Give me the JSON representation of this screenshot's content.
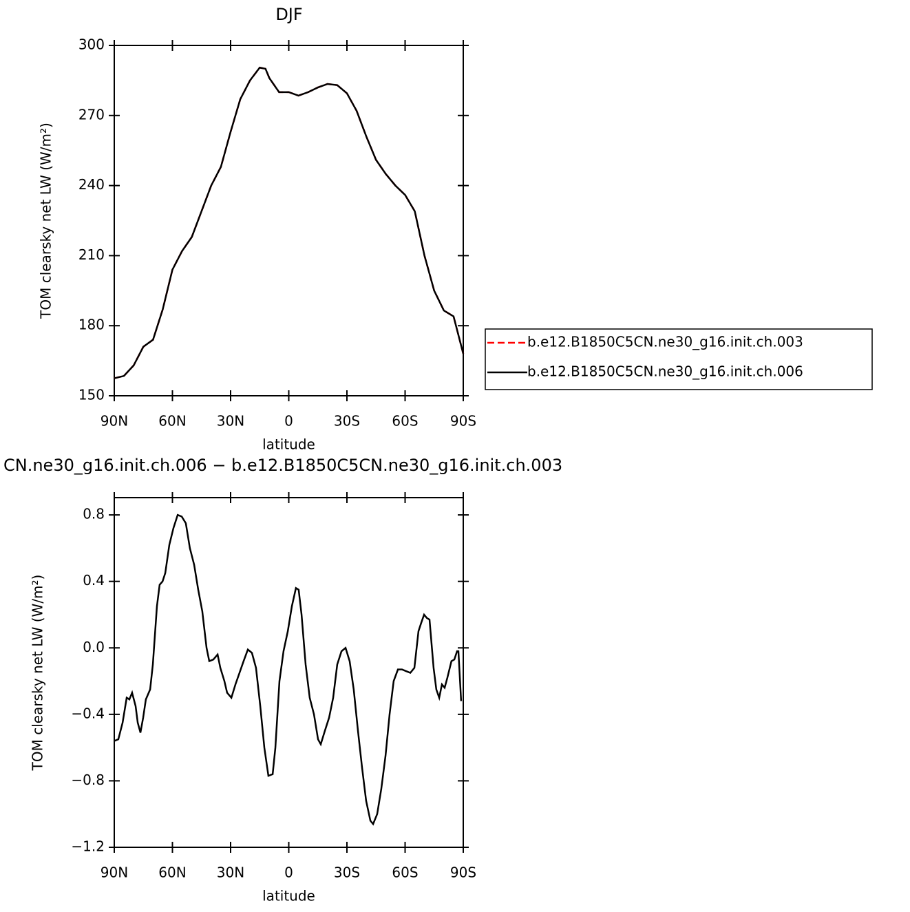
{
  "chart_data": [
    {
      "type": "line",
      "title": "DJF",
      "xlabel": "latitude",
      "ylabel": "TOM clearsky net LW (W/m²)",
      "x": [
        90,
        85,
        80,
        75,
        70,
        65,
        60,
        55,
        50,
        45,
        40,
        35,
        30,
        25,
        20,
        15,
        12,
        10,
        5,
        0,
        -5,
        -10,
        -15,
        -20,
        -25,
        -30,
        -35,
        -40,
        -45,
        -50,
        -55,
        -60,
        -65,
        -70,
        -75,
        -80,
        -85,
        -90
      ],
      "series": [
        {
          "name": "b.e12.B1850C5CN.ne30_g16.init.ch.003",
          "color": "#ff0000",
          "linestyle": "dashed",
          "values": [
            157.5,
            158.5,
            163,
            171,
            174,
            187,
            204,
            212,
            218,
            229,
            240,
            248,
            263,
            277,
            285,
            290.5,
            290,
            286,
            280,
            280,
            278.5,
            280,
            282,
            283.5,
            283,
            279.5,
            272,
            261,
            251,
            245,
            240,
            236,
            229,
            210,
            195,
            186.5,
            184,
            168
          ]
        },
        {
          "name": "b.e12.B1850C5CN.ne30_g16.init.ch.006",
          "color": "#000000",
          "linestyle": "solid",
          "values": [
            157.5,
            158.5,
            163,
            171,
            174,
            187,
            204,
            212,
            218,
            229,
            240,
            248,
            263,
            277,
            285,
            290.5,
            290,
            286,
            280,
            280,
            278.5,
            280,
            282,
            283.5,
            283,
            279.5,
            272,
            261,
            251,
            245,
            240,
            236,
            229,
            210,
            195,
            186.5,
            184,
            168
          ]
        }
      ],
      "xlim": [
        90,
        -90
      ],
      "xticks": [
        {
          "value": 90,
          "label": "90N"
        },
        {
          "value": 60,
          "label": "60N"
        },
        {
          "value": 30,
          "label": "30N"
        },
        0,
        {
          "value": -30,
          "label": "30S"
        },
        {
          "value": -60,
          "label": "60S"
        },
        {
          "value": -90,
          "label": "90S"
        }
      ],
      "ylim": [
        150,
        300
      ],
      "yticks": [
        150,
        180,
        210,
        240,
        270,
        300
      ],
      "legend": "right"
    },
    {
      "type": "line",
      "title": "CN.ne30_g16.init.ch.006 − b.e12.B1850C5CN.ne30_g16.init.ch.003",
      "xlabel": "latitude",
      "ylabel": "TOM clearsky net LW (W/m²)",
      "x": [
        90,
        87.9,
        85.7,
        83.6,
        82.2,
        80.8,
        79.0,
        77.9,
        76.5,
        75.1,
        73.7,
        71.5,
        70.1,
        68.0,
        66.6,
        65.1,
        63.7,
        61.6,
        59.5,
        57.3,
        55.2,
        53.1,
        51.0,
        48.8,
        46.7,
        44.6,
        42.4,
        41.0,
        38.9,
        36.7,
        35.3,
        33.2,
        31.8,
        29.6,
        27.5,
        25.4,
        23.3,
        21.1,
        19.0,
        16.9,
        14.7,
        12.6,
        10.5,
        8.3,
        6.9,
        4.8,
        2.7,
        0.5,
        -1.6,
        -3.7,
        -5.1,
        -6.6,
        -8.7,
        -10.8,
        -13.0,
        -15.1,
        -16.5,
        -18.6,
        -20.8,
        -22.9,
        -25.0,
        -27.2,
        -29.3,
        -31.4,
        -33.5,
        -35.7,
        -37.8,
        -39.9,
        -42.1,
        -43.5,
        -45.6,
        -47.7,
        -49.9,
        -52.0,
        -54.1,
        -56.3,
        -58.4,
        -60.5,
        -62.7,
        -64.8,
        -66.9,
        -68.3,
        -69.8,
        -71.2,
        -72.6,
        -74.7,
        -76.1,
        -77.6,
        -79.0,
        -80.4,
        -81.8,
        -83.9,
        -85.4,
        -86.8,
        -87.5,
        -88.9
      ],
      "series": [
        {
          "color": "#000000",
          "linestyle": "solid",
          "values": [
            -0.56,
            -0.55,
            -0.45,
            -0.3,
            -0.31,
            -0.27,
            -0.35,
            -0.45,
            -0.51,
            -0.42,
            -0.31,
            -0.25,
            -0.1,
            0.25,
            0.38,
            0.4,
            0.45,
            0.62,
            0.72,
            0.8,
            0.79,
            0.75,
            0.6,
            0.5,
            0.35,
            0.22,
            0.0,
            -0.08,
            -0.07,
            -0.04,
            -0.12,
            -0.2,
            -0.27,
            -0.3,
            -0.22,
            -0.15,
            -0.08,
            -0.01,
            -0.03,
            -0.12,
            -0.35,
            -0.6,
            -0.77,
            -0.76,
            -0.6,
            -0.2,
            -0.02,
            0.1,
            0.25,
            0.36,
            0.35,
            0.2,
            -0.1,
            -0.3,
            -0.4,
            -0.55,
            -0.58,
            -0.5,
            -0.42,
            -0.3,
            -0.1,
            -0.02,
            0.0,
            -0.08,
            -0.25,
            -0.5,
            -0.72,
            -0.92,
            -1.04,
            -1.06,
            -1.0,
            -0.85,
            -0.65,
            -0.4,
            -0.2,
            -0.13,
            -0.13,
            -0.14,
            -0.15,
            -0.12,
            0.1,
            0.15,
            0.2,
            0.18,
            0.17,
            -0.12,
            -0.25,
            -0.3,
            -0.22,
            -0.24,
            -0.18,
            -0.08,
            -0.07,
            -0.02,
            -0.02,
            -0.32
          ]
        }
      ],
      "xlim": [
        90,
        -90
      ],
      "xticks": [
        {
          "value": 90,
          "label": "90N"
        },
        {
          "value": 60,
          "label": "60N"
        },
        {
          "value": 30,
          "label": "30N"
        },
        0,
        {
          "value": -30,
          "label": "30S"
        },
        {
          "value": -60,
          "label": "60S"
        },
        {
          "value": -90,
          "label": "90S"
        }
      ],
      "ylim": [
        -1.2,
        0.904
      ],
      "yticks": [
        {
          "value": -1.2,
          "label": "−1.2"
        },
        {
          "value": -0.8,
          "label": "−0.8"
        },
        {
          "value": -0.4,
          "label": "−0.4"
        },
        {
          "value": 0,
          "label": "0.0"
        },
        0.4,
        0.8
      ]
    }
  ]
}
